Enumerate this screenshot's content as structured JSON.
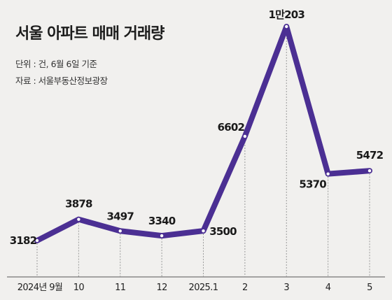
{
  "title": "서울 아파트 매매 거래량",
  "unit_note": "단위 : 건, 6월 6일 기준",
  "source_note": "자료 : 서울부동산정보광장",
  "colors": {
    "line": "#4b2f93",
    "background": "#f1f0ee",
    "grid": "#9a9a9a"
  },
  "chart_data": {
    "type": "line",
    "title": "서울 아파트 매매 거래량",
    "categories": [
      "2024년 9월",
      "10",
      "11",
      "12",
      "2025.1",
      "2",
      "3",
      "4",
      "5"
    ],
    "values": [
      3182,
      3878,
      3497,
      3340,
      3500,
      6602,
      10203,
      5370,
      5472
    ],
    "value_labels": [
      "3182",
      "3878",
      "3497",
      "3340",
      "3500",
      "6602",
      "1만203",
      "5370",
      "5472"
    ],
    "xlabel": "",
    "ylabel": "",
    "grid": "vertical dotted guides",
    "legend": "none"
  }
}
